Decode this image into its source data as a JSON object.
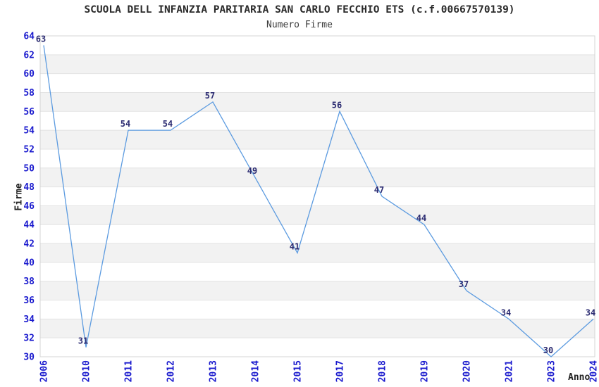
{
  "chart_data": {
    "type": "line",
    "title": "SCUOLA DELL INFANZIA PARITARIA SAN CARLO FECCHIO ETS (c.f.00667570139)",
    "subtitle": "Numero Firme",
    "xlabel": "Anno",
    "ylabel": "Firme",
    "categories": [
      "2006",
      "2010",
      "2011",
      "2012",
      "2013",
      "2014",
      "2015",
      "2017",
      "2018",
      "2019",
      "2020",
      "2021",
      "2023",
      "2024"
    ],
    "series": [
      {
        "name": "Numero Firme",
        "values": [
          63,
          31,
          54,
          54,
          57,
          49,
          41,
          56,
          47,
          44,
          37,
          34,
          30,
          34
        ]
      }
    ],
    "ylim": [
      30,
      64
    ],
    "ytick_step": 2,
    "grid": "horizontal-bands",
    "legend": "none",
    "colors": {
      "line": "#5c9be0",
      "tick_label": "#1a1ace",
      "point_label": "#2c2c72",
      "band": "#f2f2f2",
      "gridline": "#e3e3e3",
      "border": "#d4d4d4",
      "title": "#2a2a2a"
    }
  }
}
